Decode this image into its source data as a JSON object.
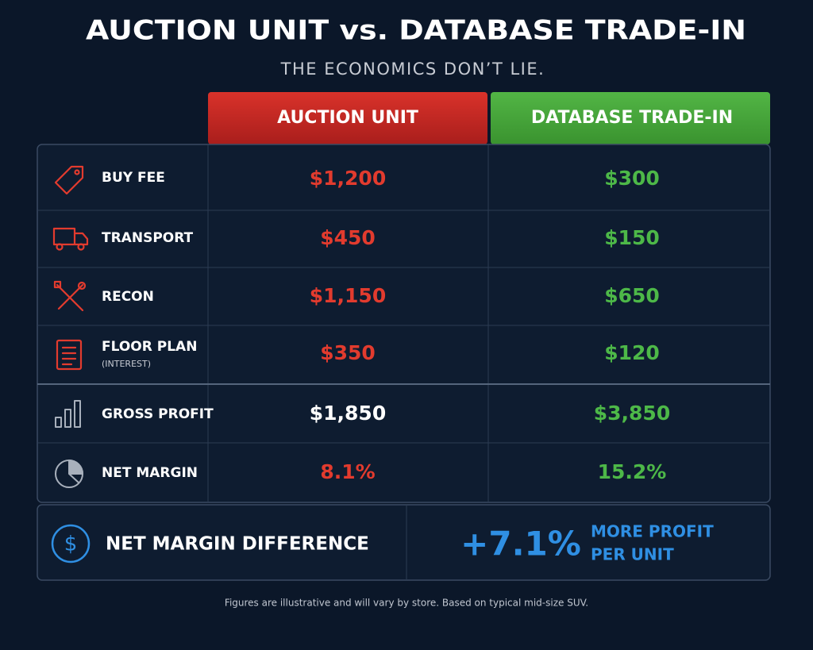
{
  "header": {
    "title": "AUCTION UNIT vs. DATABASE TRADE-IN",
    "subtitle": "THE ECONOMICS DON’T LIE."
  },
  "table": {
    "columns": [
      "AUCTION UNIT",
      "DATABASE TRADE-IN"
    ],
    "rows": [
      {
        "label": "BUY FEE",
        "values": [
          "$1,200",
          "$300"
        ]
      },
      {
        "label": "TRANSPORT",
        "values": [
          "$450",
          "$150"
        ]
      },
      {
        "label": "RECON",
        "values": [
          "$1,150",
          "$650"
        ]
      },
      {
        "label": "FLOOR PLAN",
        "note": "(INTEREST)",
        "values": [
          "$350",
          "$120"
        ]
      },
      {
        "label": "GROSS PROFIT",
        "values": [
          "$1,850",
          "$3,850"
        ]
      },
      {
        "label": "NET MARGIN",
        "values": [
          "8.1%",
          "15.2%"
        ]
      }
    ]
  },
  "summary": {
    "icon": "$",
    "label": "NET MARGIN DIFFERENCE",
    "value": "+7.1%",
    "caption": [
      "MORE PROFIT",
      "PER UNIT"
    ]
  },
  "footnote": "Figures are illustrative and will vary by store. Based on typical mid-size SUV."
}
